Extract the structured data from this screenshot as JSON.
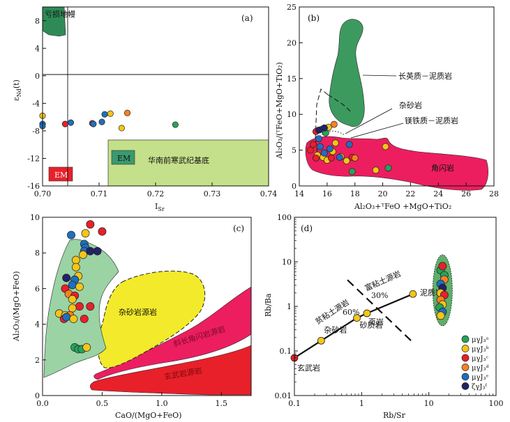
{
  "chart_data": [
    {
      "panel": "(a)",
      "type": "scatter",
      "xlabel": "I_Sr",
      "ylabel": "ε_Nd(t)",
      "xlim": [
        0.7,
        0.74
      ],
      "ylim": [
        -16,
        10
      ],
      "xticks": [
        "0.70",
        "0.71",
        "0.72",
        "0.73",
        "0.74"
      ],
      "yticks": [
        "-16",
        "-12",
        "-8",
        "-4",
        "0",
        "4",
        "8"
      ],
      "regions": [
        {
          "name": "亏损地幔",
          "color": "#2e8b57"
        },
        {
          "name": "华南前寒武纪基底",
          "color": "#c5e08a"
        },
        {
          "name": "EM",
          "color": "#3a9a6e",
          "label_color": "#111111"
        },
        {
          "name": "EM",
          "color": "#e8202a",
          "label_color": "#ffffff"
        }
      ],
      "points": [
        {
          "x": 0.7,
          "y": -5.8,
          "color": "#f5c518"
        },
        {
          "x": 0.7,
          "y": -7.0,
          "color": "#1f6fbf"
        },
        {
          "x": 0.7,
          "y": -7.3,
          "color": "#1f6fbf"
        },
        {
          "x": 0.704,
          "y": -7.0,
          "color": "#e8202a"
        },
        {
          "x": 0.705,
          "y": -6.8,
          "color": "#1f6fbf"
        },
        {
          "x": 0.7088,
          "y": -6.9,
          "color": "#e8202a"
        },
        {
          "x": 0.709,
          "y": -7.0,
          "color": "#1f6fbf"
        },
        {
          "x": 0.7105,
          "y": -6.7,
          "color": "#1f6fbf"
        },
        {
          "x": 0.711,
          "y": -5.6,
          "color": "#1f6fbf"
        },
        {
          "x": 0.712,
          "y": -5.5,
          "color": "#f5c518"
        },
        {
          "x": 0.714,
          "y": -7.6,
          "color": "#f5c518"
        },
        {
          "x": 0.715,
          "y": -5.4,
          "color": "#f58220"
        },
        {
          "x": 0.7235,
          "y": -7.1,
          "color": "#27a35a"
        }
      ]
    },
    {
      "panel": "(b)",
      "type": "scatter",
      "xlabel": "Al₂O₃+ᵀFeO +MgO+TiO₂",
      "ylabel": "Al₂O₃/(ᵀFeO+MgO+TiO₂)",
      "xlim": [
        14,
        28
      ],
      "ylim": [
        0,
        25
      ],
      "xticks": [
        "14",
        "16",
        "18",
        "20",
        "22",
        "24",
        "26",
        "28"
      ],
      "yticks": [
        "0",
        "5",
        "10",
        "15",
        "20",
        "25"
      ],
      "regions": [
        {
          "name": "长英质－泥质岩",
          "color": "#3c9a5f"
        },
        {
          "name": "杂砂岩"
        },
        {
          "name": "镁铁质－泥质岩"
        },
        {
          "name": "角闪岩",
          "color": "#ec1e5f"
        }
      ],
      "points": [
        {
          "x": 14.8,
          "y": 5.0,
          "color": "#e8202a"
        },
        {
          "x": 15.0,
          "y": 5.8,
          "color": "#e8202a"
        },
        {
          "x": 15.2,
          "y": 7.6,
          "color": "#e8202a"
        },
        {
          "x": 15.4,
          "y": 6.6,
          "color": "#1f6fbf"
        },
        {
          "x": 15.6,
          "y": 7.9,
          "color": "#1f6fbf"
        },
        {
          "x": 15.9,
          "y": 7.4,
          "color": "#27a35a"
        },
        {
          "x": 16.1,
          "y": 8.2,
          "color": "#f5c518"
        },
        {
          "x": 15.3,
          "y": 4.3,
          "color": "#f5c518"
        },
        {
          "x": 15.7,
          "y": 4.0,
          "color": "#f5c518"
        },
        {
          "x": 16.0,
          "y": 3.6,
          "color": "#f5c518"
        },
        {
          "x": 16.4,
          "y": 4.8,
          "color": "#f5c518"
        },
        {
          "x": 16.6,
          "y": 6.0,
          "color": "#f5c518"
        },
        {
          "x": 17.0,
          "y": 4.1,
          "color": "#f5c518"
        },
        {
          "x": 17.4,
          "y": 3.5,
          "color": "#f5c518"
        },
        {
          "x": 15.5,
          "y": 5.5,
          "color": "#1f6fbf"
        },
        {
          "x": 15.8,
          "y": 4.6,
          "color": "#1f6fbf"
        },
        {
          "x": 16.2,
          "y": 5.2,
          "color": "#1f6fbf"
        },
        {
          "x": 16.9,
          "y": 4.0,
          "color": "#1f6fbf"
        },
        {
          "x": 17.6,
          "y": 5.8,
          "color": "#1f6fbf"
        },
        {
          "x": 15.4,
          "y": 7.8,
          "color": "#222266"
        },
        {
          "x": 15.8,
          "y": 8.1,
          "color": "#222266"
        },
        {
          "x": 15.2,
          "y": 3.9,
          "color": "#e8202a"
        },
        {
          "x": 16.3,
          "y": 3.9,
          "color": "#e8202a"
        },
        {
          "x": 17.8,
          "y": 4.0,
          "color": "#e8202a"
        },
        {
          "x": 18.0,
          "y": 3.9,
          "color": "#f58220"
        },
        {
          "x": 16.5,
          "y": 8.6,
          "color": "#f58220"
        },
        {
          "x": 17.8,
          "y": 2.0,
          "color": "#27a35a"
        },
        {
          "x": 19.5,
          "y": 2.2,
          "color": "#f5c518"
        },
        {
          "x": 20.2,
          "y": 5.5,
          "color": "#f5c518"
        },
        {
          "x": 20.4,
          "y": 2.5,
          "color": "#27a35a"
        }
      ]
    },
    {
      "panel": "(c)",
      "type": "scatter",
      "xlabel": "CaO/(MgO+FeO)",
      "ylabel": "Al₂O₃/(MgO+FeO)",
      "xlim": [
        0.0,
        1.75
      ],
      "ylim": [
        0,
        10
      ],
      "xticks": [
        "0.0",
        "0.5",
        "1.0",
        "1.5"
      ],
      "yticks": [
        "0",
        "2",
        "4",
        "6",
        "8",
        "10"
      ],
      "regions": [
        {
          "name": "杂砂岩源岩",
          "color": "#f2ea2a"
        },
        {
          "name": "斜长角闪岩源岩",
          "color": "#ec1e5f"
        },
        {
          "name": "玄武岩源岩",
          "color": "#e8202a"
        }
      ],
      "points": [
        {
          "x": 0.4,
          "y": 9.6,
          "color": "#e8202a"
        },
        {
          "x": 0.24,
          "y": 9.0,
          "color": "#1f6fbf"
        },
        {
          "x": 0.36,
          "y": 9.1,
          "color": "#f5c518"
        },
        {
          "x": 0.5,
          "y": 9.2,
          "color": "#e8202a"
        },
        {
          "x": 0.35,
          "y": 8.5,
          "color": "#1f6fbf"
        },
        {
          "x": 0.36,
          "y": 8.3,
          "color": "#1f6fbf"
        },
        {
          "x": 0.35,
          "y": 8.1,
          "color": "#1f6fbf"
        },
        {
          "x": 0.34,
          "y": 7.9,
          "color": "#f5c518"
        },
        {
          "x": 0.46,
          "y": 8.1,
          "color": "#222266"
        },
        {
          "x": 0.4,
          "y": 8.1,
          "color": "#222266"
        },
        {
          "x": 0.28,
          "y": 7.6,
          "color": "#f5c518"
        },
        {
          "x": 0.28,
          "y": 7.2,
          "color": "#f5c518"
        },
        {
          "x": 0.3,
          "y": 6.7,
          "color": "#f5c518"
        },
        {
          "x": 0.2,
          "y": 6.6,
          "color": "#222266"
        },
        {
          "x": 0.27,
          "y": 6.5,
          "color": "#1f6fbf"
        },
        {
          "x": 0.25,
          "y": 6.2,
          "color": "#1f6fbf"
        },
        {
          "x": 0.31,
          "y": 6.1,
          "color": "#f5c518"
        },
        {
          "x": 0.19,
          "y": 6.0,
          "color": "#e8202a"
        },
        {
          "x": 0.22,
          "y": 5.7,
          "color": "#f58220"
        },
        {
          "x": 0.27,
          "y": 5.6,
          "color": "#e8202a"
        },
        {
          "x": 0.25,
          "y": 5.4,
          "color": "#f5c518"
        },
        {
          "x": 0.31,
          "y": 5.0,
          "color": "#e8202a"
        },
        {
          "x": 0.25,
          "y": 4.9,
          "color": "#f5c518"
        },
        {
          "x": 0.4,
          "y": 5.0,
          "color": "#e8202a"
        },
        {
          "x": 0.14,
          "y": 4.6,
          "color": "#f5c518"
        },
        {
          "x": 0.19,
          "y": 4.5,
          "color": "#f5c518"
        },
        {
          "x": 0.23,
          "y": 4.5,
          "color": "#f58220"
        },
        {
          "x": 0.18,
          "y": 4.3,
          "color": "#e8202a"
        },
        {
          "x": 0.2,
          "y": 4.4,
          "color": "#1f6fbf"
        },
        {
          "x": 0.26,
          "y": 4.3,
          "color": "#f5c518"
        },
        {
          "x": 0.35,
          "y": 4.3,
          "color": "#e8202a"
        },
        {
          "x": 0.27,
          "y": 2.7,
          "color": "#27a35a"
        },
        {
          "x": 0.3,
          "y": 2.6,
          "color": "#27a35a"
        },
        {
          "x": 0.33,
          "y": 2.6,
          "color": "#27a35a"
        },
        {
          "x": 0.37,
          "y": 2.7,
          "color": "#f5c518"
        }
      ]
    },
    {
      "panel": "(d)",
      "type": "scatter",
      "xlabel": "Rb/Sr",
      "ylabel": "Rb/Ba",
      "xscale": "log",
      "yscale": "log",
      "xlim": [
        0.1,
        100
      ],
      "ylim": [
        0.01,
        100
      ],
      "xticks": [
        "0.1",
        "1",
        "10",
        "100"
      ],
      "yticks": [
        "0.01",
        "0.1",
        "1",
        "10",
        "100"
      ],
      "mixing_curve": {
        "labels": [
          "富粘土源岩",
          "贫粘土源岩",
          "30%",
          "60%"
        ],
        "nodes": [
          {
            "name": "玄武岩",
            "x": 0.1,
            "y": 0.07,
            "color": "#e8202a"
          },
          {
            "name": "杂砂岩",
            "x": 0.25,
            "y": 0.17,
            "color": "#f5c518"
          },
          {
            "name": "砂质岩",
            "x": 0.85,
            "y": 0.55,
            "color": "#f5c518"
          },
          {
            "name": "页岩",
            "x": 1.2,
            "y": 0.7,
            "color": "#f5c518"
          },
          {
            "name": "泥质岩",
            "x": 5.8,
            "y": 1.9,
            "color": "#f5c518"
          }
        ]
      },
      "points": [
        {
          "x": 15,
          "y": 6.5,
          "color": "#27a35a"
        },
        {
          "x": 17,
          "y": 5.0,
          "color": "#27a35a"
        },
        {
          "x": 16,
          "y": 8.0,
          "color": "#e8202a"
        },
        {
          "x": 17,
          "y": 4.0,
          "color": "#f58220"
        },
        {
          "x": 15,
          "y": 3.2,
          "color": "#1f6fbf"
        },
        {
          "x": 16,
          "y": 2.6,
          "color": "#222266"
        },
        {
          "x": 15,
          "y": 2.0,
          "color": "#f5c518"
        },
        {
          "x": 17,
          "y": 1.8,
          "color": "#e8202a"
        },
        {
          "x": 15,
          "y": 1.4,
          "color": "#f58220"
        },
        {
          "x": 16,
          "y": 1.1,
          "color": "#f5c518"
        },
        {
          "x": 14.5,
          "y": 0.95,
          "color": "#27a35a"
        },
        {
          "x": 16,
          "y": 0.75,
          "color": "#1f6fbf"
        },
        {
          "x": 15,
          "y": 0.62,
          "color": "#f5c518"
        }
      ],
      "legend": {
        "position": "bottom-right",
        "entries": [
          {
            "label": "μγJ₃ᵃ",
            "color": "#27a35a"
          },
          {
            "label": "μγJ₃ᵇ",
            "color": "#f5c518"
          },
          {
            "label": "μγJ₃ᶜ",
            "color": "#e8202a"
          },
          {
            "label": "μγJ₃ᵈ",
            "color": "#f58220"
          },
          {
            "label": "μγJ₃ᵉ",
            "color": "#1f6fbf"
          },
          {
            "label": "ζγJ₃ᶠ",
            "color": "#222266"
          }
        ]
      }
    }
  ]
}
